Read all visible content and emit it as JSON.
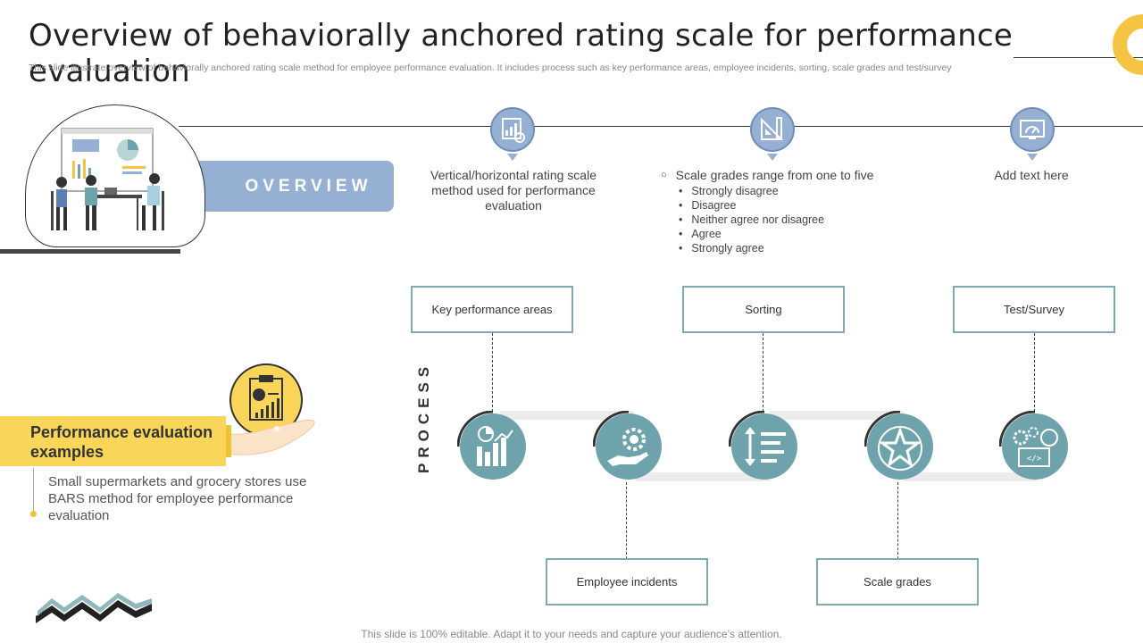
{
  "header": {
    "title": "Overview of behaviorally anchored rating scale for performance evaluation",
    "subtitle": "This slide illustrate overview of behaviorally anchored rating scale method for employee performance evaluation. It includes process such as key performance areas, employee incidents, sorting, scale grades and test/survey"
  },
  "overview": {
    "banner": "OVERVIEW",
    "item1": "Vertical/horizontal rating scale method used for performance evaluation",
    "grades_lead": "Scale grades range from one to five",
    "grades": [
      "Strongly disagree",
      "Disagree",
      "Neither agree nor disagree",
      "Agree",
      "Strongly agree"
    ],
    "item3": "Add text here"
  },
  "process": {
    "label": "PROCESS",
    "steps": [
      "Key performance  areas",
      "Employee incidents",
      "Sorting",
      "Scale grades",
      "Test/Survey"
    ]
  },
  "example": {
    "title": "Performance evaluation examples",
    "text": "Small supermarkets and grocery stores use BARS method for employee performance evaluation"
  },
  "footer": "This slide is 100% editable. Adapt it to your needs and capture your audience’s attention.",
  "colors": {
    "teal": "#6fa3ab",
    "blue": "#96b0d4",
    "yellow": "#f9d55a",
    "dark": "#333333"
  }
}
